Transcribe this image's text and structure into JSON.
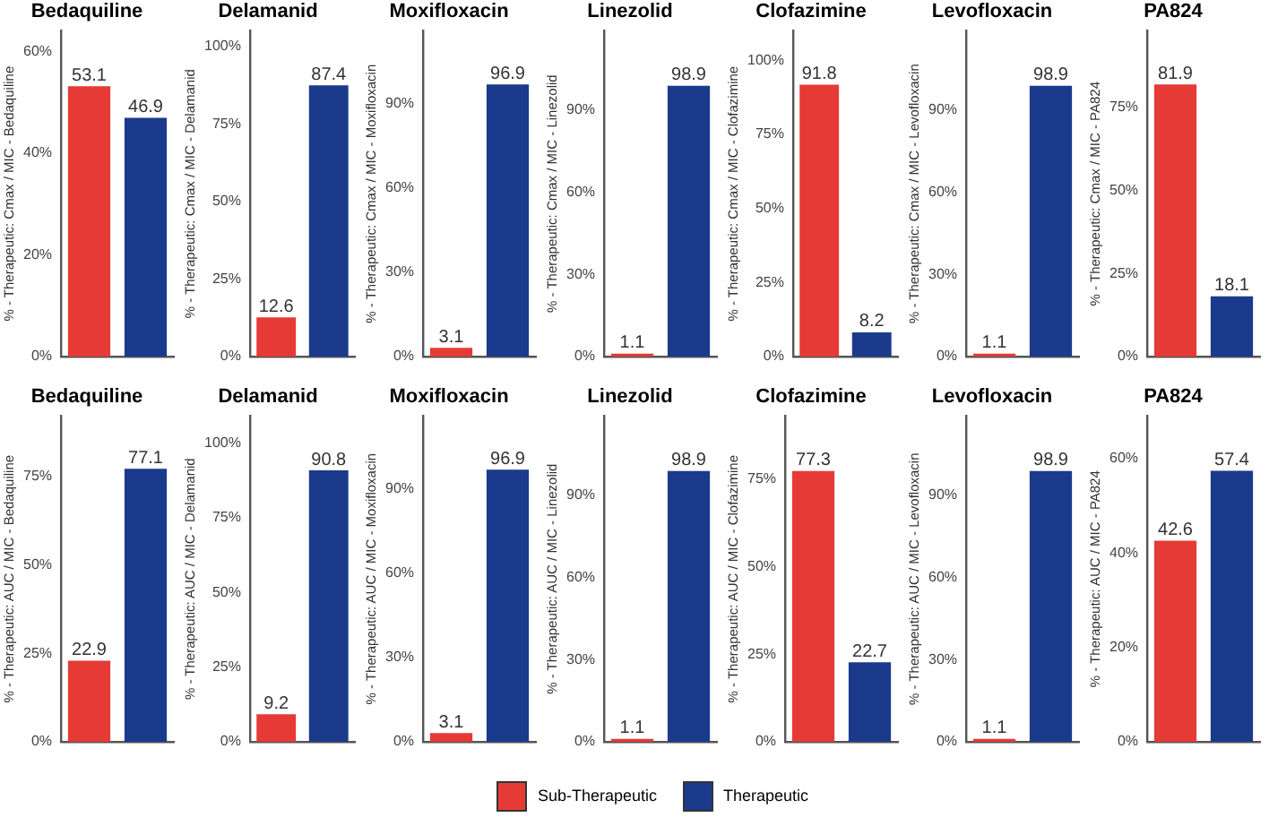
{
  "chart_data": [
    {
      "type": "bar",
      "title": "Bedaquiline",
      "ylabel": "% - Therapeutic: Cmax / MIC - Bedaquiline",
      "categories": [
        null,
        null
      ],
      "series": [
        {
          "name": "Sub-Therapeutic",
          "color": "#e53a36",
          "values": [
            53.1,
            null
          ]
        },
        {
          "name": "Therapeutic",
          "color": "#1b3a8c",
          "values": [
            null,
            46.9
          ]
        }
      ],
      "ylim": [
        0,
        64
      ],
      "yticks": [
        {
          "value": 0,
          "label": "0%"
        },
        {
          "value": 20,
          "label": "20%"
        },
        {
          "value": 40,
          "label": "40%"
        },
        {
          "value": 60,
          "label": "60%"
        }
      ],
      "data_labels": true,
      "grid": false,
      "legend": "bottom"
    },
    {
      "type": "bar",
      "title": "Delamanid",
      "ylabel": "% - Therapeutic: Cmax / MIC - Delamanid",
      "categories": [
        null,
        null
      ],
      "series": [
        {
          "color": "#e53a36",
          "values": [
            12.6,
            null
          ]
        },
        {
          "color": "#1b3a8c",
          "values": [
            null,
            87.4
          ]
        }
      ],
      "ylim": [
        0,
        105
      ],
      "yticks": [
        {
          "value": 0,
          "label": "0%"
        },
        {
          "value": 25,
          "label": "25%"
        },
        {
          "value": 50,
          "label": "50%"
        },
        {
          "value": 75,
          "label": "75%"
        },
        {
          "value": 100,
          "label": "100%"
        }
      ],
      "data_labels": true,
      "grid": false
    },
    {
      "type": "bar",
      "title": "Moxifloxacin",
      "ylabel": "% - Therapeutic: Cmax / MIC - Moxifloxacin",
      "categories": [
        null,
        null
      ],
      "series": [
        {
          "color": "#e53a36",
          "values": [
            3.1,
            null
          ]
        },
        {
          "color": "#1b3a8c",
          "values": [
            null,
            96.9
          ]
        }
      ],
      "ylim": [
        0,
        116
      ],
      "yticks": [
        {
          "value": 0,
          "label": "0%"
        },
        {
          "value": 30,
          "label": "30%"
        },
        {
          "value": 60,
          "label": "60%"
        },
        {
          "value": 90,
          "label": "90%"
        }
      ],
      "data_labels": true,
      "grid": false
    },
    {
      "type": "bar",
      "title": "Linezolid",
      "ylabel": "% - Therapeutic: Cmax / MIC - Linezolid",
      "categories": [
        null,
        null
      ],
      "series": [
        {
          "color": "#e53a36",
          "values": [
            1.1,
            null
          ]
        },
        {
          "color": "#1b3a8c",
          "values": [
            null,
            98.9
          ]
        }
      ],
      "ylim": [
        0,
        119
      ],
      "yticks": [
        {
          "value": 0,
          "label": "0%"
        },
        {
          "value": 30,
          "label": "30%"
        },
        {
          "value": 60,
          "label": "60%"
        },
        {
          "value": 90,
          "label": "90%"
        }
      ],
      "data_labels": true,
      "grid": false
    },
    {
      "type": "bar",
      "title": "Clofazimine",
      "ylabel": "% - Therapeutic: Cmax / MIC - Clofazimine",
      "categories": [
        null,
        null
      ],
      "series": [
        {
          "color": "#e53a36",
          "values": [
            91.8,
            null
          ]
        },
        {
          "color": "#1b3a8c",
          "values": [
            null,
            8.2
          ]
        }
      ],
      "ylim": [
        0,
        110
      ],
      "yticks": [
        {
          "value": 0,
          "label": "0%"
        },
        {
          "value": 25,
          "label": "25%"
        },
        {
          "value": 50,
          "label": "50%"
        },
        {
          "value": 75,
          "label": "75%"
        },
        {
          "value": 100,
          "label": "100%"
        }
      ],
      "data_labels": true,
      "grid": false
    },
    {
      "type": "bar",
      "title": "Levofloxacin",
      "ylabel": "% - Therapeutic: Cmax / MIC - Levofloxacin",
      "categories": [
        null,
        null
      ],
      "series": [
        {
          "color": "#e53a36",
          "values": [
            1.1,
            null
          ]
        },
        {
          "color": "#1b3a8c",
          "values": [
            null,
            98.9
          ]
        }
      ],
      "ylim": [
        0,
        119
      ],
      "yticks": [
        {
          "value": 0,
          "label": "0%"
        },
        {
          "value": 30,
          "label": "30%"
        },
        {
          "value": 60,
          "label": "60%"
        },
        {
          "value": 90,
          "label": "90%"
        }
      ],
      "data_labels": true,
      "grid": false
    },
    {
      "type": "bar",
      "title": "PA824",
      "ylabel": "% - Therapeutic: Cmax / MIC - PA824",
      "categories": [
        null,
        null
      ],
      "series": [
        {
          "color": "#e53a36",
          "values": [
            81.9,
            null
          ]
        },
        {
          "color": "#1b3a8c",
          "values": [
            null,
            18.1
          ]
        }
      ],
      "ylim": [
        0,
        98
      ],
      "yticks": [
        {
          "value": 0,
          "label": "0%"
        },
        {
          "value": 25,
          "label": "25%"
        },
        {
          "value": 50,
          "label": "50%"
        },
        {
          "value": 75,
          "label": "75%"
        }
      ],
      "data_labels": true,
      "grid": false
    },
    {
      "type": "bar",
      "title": "Bedaquiline",
      "ylabel": "% - Therapeutic: AUC / MIC - Bedaquiline",
      "categories": [
        null,
        null
      ],
      "series": [
        {
          "color": "#e53a36",
          "values": [
            22.9,
            null
          ]
        },
        {
          "color": "#1b3a8c",
          "values": [
            null,
            77.1
          ]
        }
      ],
      "ylim": [
        0,
        92
      ],
      "yticks": [
        {
          "value": 0,
          "label": "0%"
        },
        {
          "value": 25,
          "label": "25%"
        },
        {
          "value": 50,
          "label": "50%"
        },
        {
          "value": 75,
          "label": "75%"
        }
      ],
      "data_labels": true,
      "grid": false
    },
    {
      "type": "bar",
      "title": "Delamanid",
      "ylabel": "% - Therapeutic: AUC / MIC - Delamanid",
      "categories": [
        null,
        null
      ],
      "series": [
        {
          "color": "#e53a36",
          "values": [
            9.2,
            null
          ]
        },
        {
          "color": "#1b3a8c",
          "values": [
            null,
            90.8
          ]
        }
      ],
      "ylim": [
        0,
        109
      ],
      "yticks": [
        {
          "value": 0,
          "label": "0%"
        },
        {
          "value": 25,
          "label": "25%"
        },
        {
          "value": 50,
          "label": "50%"
        },
        {
          "value": 75,
          "label": "75%"
        },
        {
          "value": 100,
          "label": "100%"
        }
      ],
      "data_labels": true,
      "grid": false
    },
    {
      "type": "bar",
      "title": "Moxifloxacin",
      "ylabel": "% - Therapeutic: AUC / MIC - Moxifloxacin",
      "categories": [
        null,
        null
      ],
      "series": [
        {
          "color": "#e53a36",
          "values": [
            3.1,
            null
          ]
        },
        {
          "color": "#1b3a8c",
          "values": [
            null,
            96.9
          ]
        }
      ],
      "ylim": [
        0,
        116
      ],
      "yticks": [
        {
          "value": 0,
          "label": "0%"
        },
        {
          "value": 30,
          "label": "30%"
        },
        {
          "value": 60,
          "label": "60%"
        },
        {
          "value": 90,
          "label": "90%"
        }
      ],
      "data_labels": true,
      "grid": false
    },
    {
      "type": "bar",
      "title": "Linezolid",
      "ylabel": "% - Therapeutic: AUC / MIC - Linezolid",
      "categories": [
        null,
        null
      ],
      "series": [
        {
          "color": "#e53a36",
          "values": [
            1.1,
            null
          ]
        },
        {
          "color": "#1b3a8c",
          "values": [
            null,
            98.9
          ]
        }
      ],
      "ylim": [
        0,
        119
      ],
      "yticks": [
        {
          "value": 0,
          "label": "0%"
        },
        {
          "value": 30,
          "label": "30%"
        },
        {
          "value": 60,
          "label": "60%"
        },
        {
          "value": 90,
          "label": "90%"
        }
      ],
      "data_labels": true,
      "grid": false
    },
    {
      "type": "bar",
      "title": "Clofazimine",
      "ylabel": "% - Therapeutic: AUC / MIC - Clofazimine",
      "categories": [
        null,
        null
      ],
      "series": [
        {
          "color": "#e53a36",
          "values": [
            77.3,
            null
          ]
        },
        {
          "color": "#1b3a8c",
          "values": [
            null,
            22.7
          ]
        }
      ],
      "ylim": [
        0,
        93
      ],
      "yticks": [
        {
          "value": 0,
          "label": "0%"
        },
        {
          "value": 25,
          "label": "25%"
        },
        {
          "value": 50,
          "label": "50%"
        },
        {
          "value": 75,
          "label": "75%"
        }
      ],
      "data_labels": true,
      "grid": false
    },
    {
      "type": "bar",
      "title": "Levofloxacin",
      "ylabel": "% - Therapeutic: AUC / MIC - Levofloxacin",
      "categories": [
        null,
        null
      ],
      "series": [
        {
          "color": "#e53a36",
          "values": [
            1.1,
            null
          ]
        },
        {
          "color": "#1b3a8c",
          "values": [
            null,
            98.9
          ]
        }
      ],
      "ylim": [
        0,
        119
      ],
      "yticks": [
        {
          "value": 0,
          "label": "0%"
        },
        {
          "value": 30,
          "label": "30%"
        },
        {
          "value": 60,
          "label": "60%"
        },
        {
          "value": 90,
          "label": "90%"
        }
      ],
      "data_labels": true,
      "grid": false
    },
    {
      "type": "bar",
      "title": "PA824",
      "ylabel": "% - Therapeutic: AUC / MIC - PA824",
      "categories": [
        null,
        null
      ],
      "series": [
        {
          "color": "#e53a36",
          "values": [
            42.6,
            null
          ]
        },
        {
          "color": "#1b3a8c",
          "values": [
            null,
            57.4
          ]
        }
      ],
      "ylim": [
        0,
        69
      ],
      "yticks": [
        {
          "value": 0,
          "label": "0%"
        },
        {
          "value": 20,
          "label": "20%"
        },
        {
          "value": 40,
          "label": "40%"
        },
        {
          "value": 60,
          "label": "60%"
        }
      ],
      "data_labels": true,
      "grid": false
    }
  ]
}
